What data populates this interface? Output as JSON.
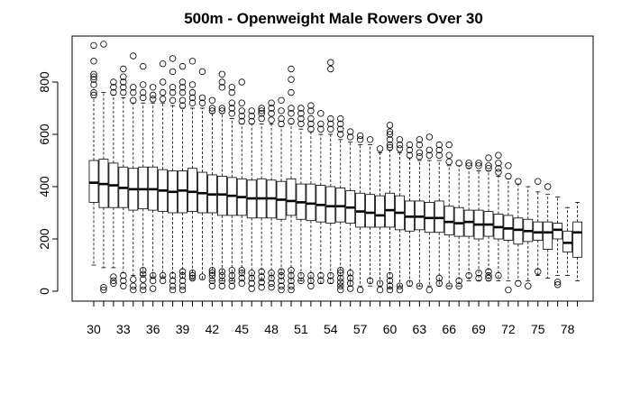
{
  "chart_data": {
    "type": "boxplot",
    "title": "500m - Openweight Male Rowers Over 30",
    "xlabel": "",
    "ylabel": "",
    "categories": [
      30,
      31,
      32,
      33,
      34,
      35,
      36,
      37,
      38,
      39,
      40,
      41,
      42,
      43,
      44,
      45,
      46,
      47,
      48,
      49,
      50,
      51,
      52,
      53,
      54,
      55,
      56,
      57,
      58,
      59,
      60,
      61,
      62,
      63,
      64,
      65,
      66,
      67,
      68,
      69,
      70,
      71,
      72,
      73,
      74,
      75,
      76,
      77,
      78,
      79
    ],
    "x_tick_labels": [
      "30",
      "33",
      "36",
      "39",
      "42",
      "45",
      "48",
      "51",
      "54",
      "57",
      "60",
      "63",
      "66",
      "69",
      "72",
      "75",
      "78"
    ],
    "y_ticks": [
      0,
      200,
      400,
      600,
      800
    ],
    "ylim": [
      -30,
      970
    ],
    "boxes": [
      {
        "age": 30,
        "min": 100,
        "q1": 340,
        "median": 415,
        "q3": 500,
        "max": 740,
        "outliers_high": [
          750,
          760,
          790,
          810,
          820,
          830,
          880,
          940
        ],
        "outliers_low": []
      },
      {
        "age": 31,
        "min": 90,
        "q1": 320,
        "median": 410,
        "q3": 505,
        "max": 760,
        "outliers_high": [
          945
        ],
        "outliers_low": [
          5,
          15
        ]
      },
      {
        "age": 32,
        "min": 90,
        "q1": 320,
        "median": 405,
        "q3": 490,
        "max": 750,
        "outliers_high": [
          760,
          780,
          800
        ],
        "outliers_low": [
          30,
          40,
          55
        ]
      },
      {
        "age": 33,
        "min": 70,
        "q1": 320,
        "median": 395,
        "q3": 475,
        "max": 740,
        "outliers_high": [
          760,
          780,
          800,
          820,
          850
        ],
        "outliers_low": [
          20,
          40,
          60
        ]
      },
      {
        "age": 34,
        "min": 60,
        "q1": 310,
        "median": 390,
        "q3": 470,
        "max": 720,
        "outliers_high": [
          730,
          760,
          780,
          900
        ],
        "outliers_low": [
          5,
          20,
          45
        ]
      },
      {
        "age": 35,
        "min": 60,
        "q1": 315,
        "median": 390,
        "q3": 475,
        "max": 720,
        "outliers_high": [
          740,
          760,
          790,
          860
        ],
        "outliers_low": [
          5,
          20,
          45,
          65,
          80
        ]
      },
      {
        "age": 36,
        "min": 55,
        "q1": 310,
        "median": 390,
        "q3": 475,
        "max": 720,
        "outliers_high": [
          735,
          750,
          780
        ],
        "outliers_low": [
          10,
          40,
          60
        ]
      },
      {
        "age": 37,
        "min": 55,
        "q1": 305,
        "median": 385,
        "q3": 465,
        "max": 720,
        "outliers_high": [
          735,
          760,
          800,
          870
        ],
        "outliers_low": [
          40,
          60
        ]
      },
      {
        "age": 38,
        "min": 50,
        "q1": 300,
        "median": 380,
        "q3": 460,
        "max": 710,
        "outliers_high": [
          730,
          760,
          780,
          840,
          890
        ],
        "outliers_low": [
          5,
          20,
          40,
          60
        ]
      },
      {
        "age": 39,
        "min": 50,
        "q1": 300,
        "median": 385,
        "q3": 460,
        "max": 700,
        "outliers_high": [
          710,
          730,
          760,
          780,
          800,
          860
        ],
        "outliers_low": [
          5,
          20,
          40,
          60,
          75
        ]
      },
      {
        "age": 40,
        "min": 45,
        "q1": 305,
        "median": 380,
        "q3": 470,
        "max": 700,
        "outliers_high": [
          720,
          740,
          760,
          790,
          880
        ],
        "outliers_low": [
          50,
          60,
          70
        ]
      },
      {
        "age": 41,
        "min": 45,
        "q1": 300,
        "median": 375,
        "q3": 455,
        "max": 700,
        "outliers_high": [
          720,
          740,
          840
        ],
        "outliers_low": [
          55
        ]
      },
      {
        "age": 42,
        "min": 40,
        "q1": 300,
        "median": 370,
        "q3": 445,
        "max": 680,
        "outliers_high": [
          690,
          700,
          730
        ],
        "outliers_low": [
          20,
          40,
          60,
          70,
          80
        ]
      },
      {
        "age": 43,
        "min": 40,
        "q1": 290,
        "median": 370,
        "q3": 440,
        "max": 680,
        "outliers_high": [
          690,
          700,
          780,
          800,
          830
        ],
        "outliers_low": [
          20,
          40,
          60,
          75
        ]
      },
      {
        "age": 44,
        "min": 40,
        "q1": 290,
        "median": 365,
        "q3": 435,
        "max": 660,
        "outliers_high": [
          680,
          700,
          720,
          760,
          780
        ],
        "outliers_low": [
          20,
          40,
          60,
          80
        ]
      },
      {
        "age": 45,
        "min": 40,
        "q1": 290,
        "median": 360,
        "q3": 430,
        "max": 640,
        "outliers_high": [
          650,
          670,
          690,
          720,
          800
        ],
        "outliers_low": [
          30,
          50,
          70,
          80
        ]
      },
      {
        "age": 46,
        "min": 40,
        "q1": 280,
        "median": 355,
        "q3": 425,
        "max": 640,
        "outliers_high": [
          650,
          670,
          690
        ],
        "outliers_low": [
          10,
          30,
          50,
          70
        ]
      },
      {
        "age": 47,
        "min": 40,
        "q1": 280,
        "median": 355,
        "q3": 430,
        "max": 640,
        "outliers_high": [
          660,
          680,
          690,
          700
        ],
        "outliers_low": [
          15,
          35,
          55,
          75
        ]
      },
      {
        "age": 48,
        "min": 40,
        "q1": 280,
        "median": 355,
        "q3": 425,
        "max": 640,
        "outliers_high": [
          655,
          680,
          700,
          720
        ],
        "outliers_low": [
          15,
          30,
          50,
          70
        ]
      },
      {
        "age": 49,
        "min": 30,
        "q1": 275,
        "median": 350,
        "q3": 420,
        "max": 630,
        "outliers_high": [
          640,
          660,
          690,
          730
        ],
        "outliers_low": [
          5,
          20,
          40,
          60,
          75
        ]
      },
      {
        "age": 50,
        "min": 30,
        "q1": 290,
        "median": 345,
        "q3": 430,
        "max": 640,
        "outliers_high": [
          650,
          680,
          700,
          760,
          810,
          850
        ],
        "outliers_low": [
          5,
          20,
          40,
          60,
          80
        ]
      },
      {
        "age": 51,
        "min": 40,
        "q1": 275,
        "median": 340,
        "q3": 410,
        "max": 620,
        "outliers_high": [
          640,
          660,
          680,
          700
        ],
        "outliers_low": [
          40,
          60
        ]
      },
      {
        "age": 52,
        "min": 30,
        "q1": 270,
        "median": 335,
        "q3": 410,
        "max": 610,
        "outliers_high": [
          620,
          640,
          660,
          690,
          710
        ],
        "outliers_low": [
          20,
          40,
          60
        ]
      },
      {
        "age": 53,
        "min": 30,
        "q1": 265,
        "median": 330,
        "q3": 405,
        "max": 600,
        "outliers_high": [
          620,
          640,
          680
        ],
        "outliers_low": [
          40,
          60
        ]
      },
      {
        "age": 54,
        "min": 30,
        "q1": 260,
        "median": 325,
        "q3": 400,
        "max": 600,
        "outliers_high": [
          620,
          640,
          660,
          850,
          875
        ],
        "outliers_low": [
          40,
          60
        ]
      },
      {
        "age": 55,
        "min": 20,
        "q1": 265,
        "median": 325,
        "q3": 395,
        "max": 580,
        "outliers_high": [
          600,
          620,
          640,
          660
        ],
        "outliers_low": [
          5,
          20,
          35,
          50,
          70,
          80
        ]
      },
      {
        "age": 56,
        "min": 20,
        "q1": 260,
        "median": 320,
        "q3": 385,
        "max": 570,
        "outliers_high": [
          590,
          610
        ],
        "outliers_low": [
          10,
          30,
          50,
          70
        ]
      },
      {
        "age": 57,
        "min": 20,
        "q1": 245,
        "median": 305,
        "q3": 375,
        "max": 560,
        "outliers_high": [
          580,
          595
        ],
        "outliers_low": [
          5
        ]
      },
      {
        "age": 58,
        "min": 20,
        "q1": 245,
        "median": 300,
        "q3": 370,
        "max": 560,
        "outliers_high": [
          580
        ],
        "outliers_low": [
          40
        ]
      },
      {
        "age": 59,
        "min": 20,
        "q1": 245,
        "median": 290,
        "q3": 365,
        "max": 530,
        "outliers_high": [
          545
        ],
        "outliers_low": [
          5,
          30
        ]
      },
      {
        "age": 60,
        "min": 10,
        "q1": 245,
        "median": 310,
        "q3": 375,
        "max": 540,
        "outliers_high": [
          550,
          560,
          580,
          600,
          610,
          635
        ],
        "outliers_low": [
          5,
          20,
          40,
          60
        ]
      },
      {
        "age": 61,
        "min": 20,
        "q1": 235,
        "median": 300,
        "q3": 365,
        "max": 530,
        "outliers_high": [
          545,
          560,
          580
        ],
        "outliers_low": [
          5,
          20
        ]
      },
      {
        "age": 62,
        "min": 20,
        "q1": 230,
        "median": 285,
        "q3": 345,
        "max": 510,
        "outliers_high": [
          520,
          540,
          560
        ],
        "outliers_low": [
          30
        ]
      },
      {
        "age": 63,
        "min": 20,
        "q1": 235,
        "median": 285,
        "q3": 345,
        "max": 500,
        "outliers_high": [
          515,
          530,
          560,
          580
        ],
        "outliers_low": [
          20
        ]
      },
      {
        "age": 64,
        "min": 20,
        "q1": 225,
        "median": 280,
        "q3": 340,
        "max": 500,
        "outliers_high": [
          520,
          540,
          590
        ],
        "outliers_low": [
          5
        ]
      },
      {
        "age": 65,
        "min": 20,
        "q1": 225,
        "median": 280,
        "q3": 345,
        "max": 500,
        "outliers_high": [
          520,
          540,
          560
        ],
        "outliers_low": [
          30,
          50
        ]
      },
      {
        "age": 66,
        "min": 20,
        "q1": 215,
        "median": 265,
        "q3": 325,
        "max": 480,
        "outliers_high": [
          495,
          520,
          560
        ],
        "outliers_low": [
          20
        ]
      },
      {
        "age": 67,
        "min": 20,
        "q1": 210,
        "median": 260,
        "q3": 320,
        "max": 480,
        "outliers_high": [
          490
        ],
        "outliers_low": [
          20,
          40
        ]
      },
      {
        "age": 68,
        "min": 40,
        "q1": 210,
        "median": 265,
        "q3": 310,
        "max": 470,
        "outliers_high": [
          480,
          490
        ],
        "outliers_low": [
          60
        ]
      },
      {
        "age": 69,
        "min": 40,
        "q1": 200,
        "median": 255,
        "q3": 310,
        "max": 460,
        "outliers_high": [
          480,
          490
        ],
        "outliers_low": [
          50,
          70
        ]
      },
      {
        "age": 70,
        "min": 40,
        "q1": 210,
        "median": 255,
        "q3": 305,
        "max": 460,
        "outliers_high": [
          470,
          480,
          510
        ],
        "outliers_low": [
          50,
          60,
          75
        ]
      },
      {
        "age": 71,
        "min": 40,
        "q1": 200,
        "median": 245,
        "q3": 295,
        "max": 440,
        "outliers_high": [
          455,
          470,
          490,
          520
        ],
        "outliers_low": [
          60
        ]
      },
      {
        "age": 72,
        "min": 40,
        "q1": 195,
        "median": 240,
        "q3": 290,
        "max": 430,
        "outliers_high": [
          440,
          480
        ],
        "outliers_low": [
          5
        ]
      },
      {
        "age": 73,
        "min": 40,
        "q1": 180,
        "median": 235,
        "q3": 280,
        "max": 410,
        "outliers_high": [
          420
        ],
        "outliers_low": [
          30
        ]
      },
      {
        "age": 74,
        "min": 40,
        "q1": 190,
        "median": 230,
        "q3": 275,
        "max": 400,
        "outliers_high": [],
        "outliers_low": [
          20
        ]
      },
      {
        "age": 75,
        "min": 60,
        "q1": 195,
        "median": 225,
        "q3": 265,
        "max": 380,
        "outliers_high": [
          420
        ],
        "outliers_low": [
          75
        ]
      },
      {
        "age": 76,
        "min": 50,
        "q1": 160,
        "median": 225,
        "q3": 265,
        "max": 370,
        "outliers_high": [
          400
        ],
        "outliers_low": []
      },
      {
        "age": 77,
        "min": 60,
        "q1": 200,
        "median": 235,
        "q3": 260,
        "max": 360,
        "outliers_high": [],
        "outliers_low": [
          25,
          35
        ]
      },
      {
        "age": 78,
        "min": 60,
        "q1": 150,
        "median": 185,
        "q3": 230,
        "max": 320,
        "outliers_high": [],
        "outliers_low": []
      },
      {
        "age": 79,
        "min": 40,
        "q1": 130,
        "median": 225,
        "q3": 265,
        "max": 340,
        "outliers_high": [],
        "outliers_low": []
      }
    ],
    "colors": {
      "box_fill": "#ffffff",
      "stroke": "#000000",
      "background": "#ffffff"
    },
    "grid": false,
    "legend": "none"
  }
}
